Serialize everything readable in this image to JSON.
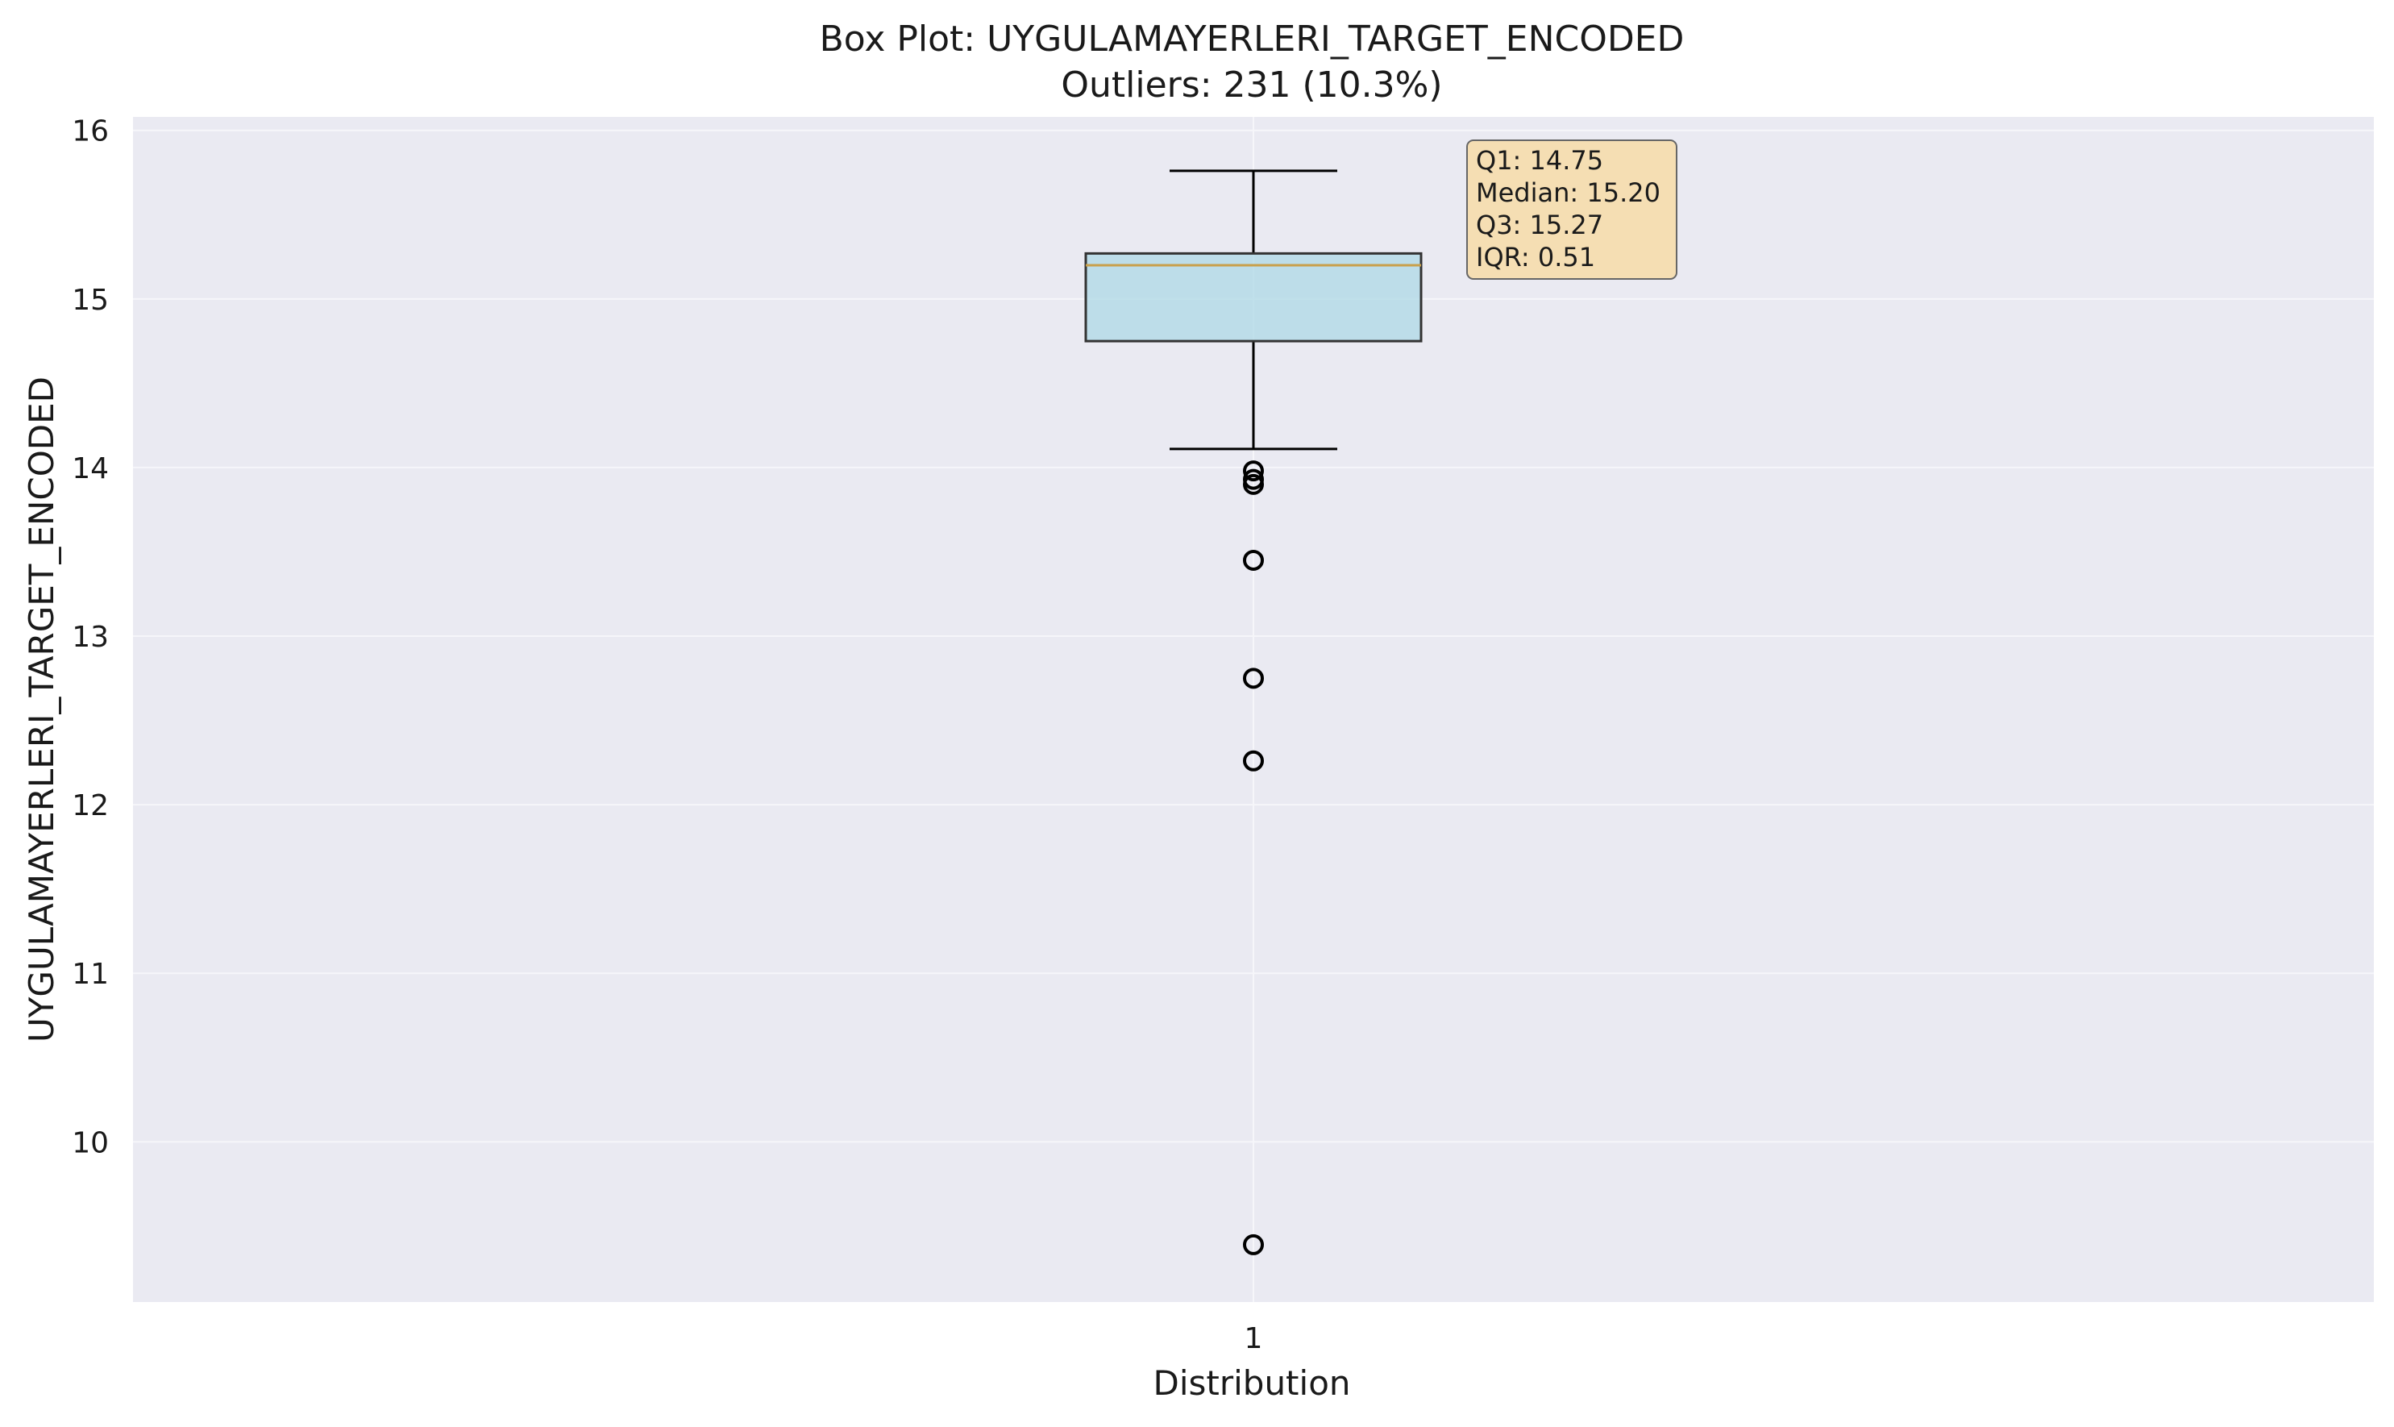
{
  "chart_data": {
    "type": "box",
    "title": "Box Plot: UYGULAMAYERLERI_TARGET_ENCODED",
    "subtitle": "Outliers: 231 (10.3%)",
    "xlabel": "Distribution",
    "ylabel": "UYGULAMAYERLERI_TARGET_ENCODED",
    "categories": [
      "1"
    ],
    "ylim": [
      9.05,
      16.08
    ],
    "yticks": [
      10,
      11,
      12,
      13,
      14,
      15,
      16
    ],
    "grid": true,
    "box": {
      "q1": 14.75,
      "median": 15.2,
      "q3": 15.27,
      "whisker_low": 14.11,
      "whisker_high": 15.76
    },
    "outliers": [
      13.98,
      13.93,
      13.9,
      13.45,
      12.75,
      12.26,
      9.39
    ],
    "stats_box": {
      "lines": [
        "Q1: 14.75",
        "Median: 15.20",
        "Q3: 15.27",
        "IQR: 0.51"
      ]
    },
    "colors": {
      "plot_background": "#eaeaf2",
      "grid": "#f6f6fa",
      "box_fill": "#add8e6",
      "box_edge": "#333333",
      "median_line": "#c9a04a",
      "whisker": "#000000",
      "outlier": "#000000",
      "stats_box_fill": "#f5deb3",
      "stats_box_edge": "#666666"
    }
  }
}
